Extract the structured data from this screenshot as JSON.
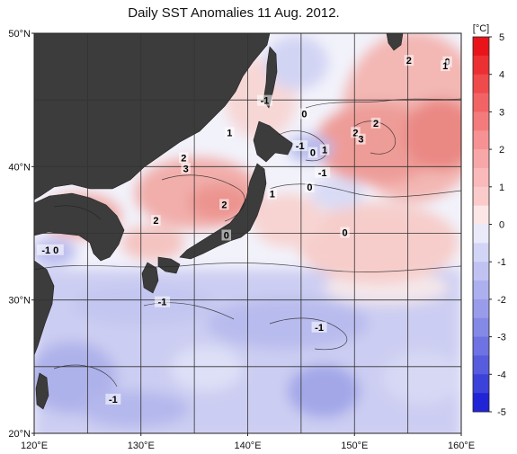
{
  "title": "Daily SST Anomalies 11 Aug. 2012.",
  "colorbar": {
    "unit": "[°C]",
    "ticks": [
      "5",
      "4",
      "3",
      "2",
      "1",
      "0",
      "-1",
      "-2",
      "-3",
      "-4",
      "-5"
    ]
  },
  "axes": {
    "lat_labels": [
      "50°N",
      "40°N",
      "30°N",
      "20°N"
    ],
    "lon_labels": [
      "120°E",
      "130°E",
      "140°E",
      "150°E",
      "160°E"
    ]
  },
  "contour_labels": [
    {
      "text": "0",
      "lon": 145.3,
      "lat": 43.9
    },
    {
      "text": "-1",
      "lon": 141.6,
      "lat": 44.9
    },
    {
      "text": "1",
      "lon": 138.3,
      "lat": 42.5
    },
    {
      "text": "0",
      "lon": 158.7,
      "lat": 47.8
    },
    {
      "text": "2",
      "lon": 155.1,
      "lat": 47.9
    },
    {
      "text": "1",
      "lon": 158.5,
      "lat": 47.5
    },
    {
      "text": "2",
      "lon": 152.0,
      "lat": 43.2
    },
    {
      "text": "2",
      "lon": 150.1,
      "lat": 42.5
    },
    {
      "text": "3",
      "lon": 150.6,
      "lat": 42.0
    },
    {
      "text": "-1",
      "lon": 144.9,
      "lat": 41.5
    },
    {
      "text": "0",
      "lon": 146.1,
      "lat": 41.0
    },
    {
      "text": "1",
      "lon": 147.2,
      "lat": 41.2
    },
    {
      "text": "2",
      "lon": 134.0,
      "lat": 40.6
    },
    {
      "text": "3",
      "lon": 134.2,
      "lat": 39.8
    },
    {
      "text": "-1",
      "lon": 147.0,
      "lat": 39.5
    },
    {
      "text": "0",
      "lon": 145.8,
      "lat": 38.4
    },
    {
      "text": "1",
      "lon": 142.3,
      "lat": 37.9
    },
    {
      "text": "2",
      "lon": 137.8,
      "lat": 37.1
    },
    {
      "text": "2",
      "lon": 131.4,
      "lat": 35.9
    },
    {
      "text": "0",
      "lon": 138.0,
      "lat": 34.8
    },
    {
      "text": "0",
      "lon": 149.1,
      "lat": 35.0
    },
    {
      "text": "-1 0",
      "lon": 121.5,
      "lat": 33.7
    },
    {
      "text": "-1",
      "lon": 132.0,
      "lat": 29.8
    },
    {
      "text": "-1",
      "lon": 146.7,
      "lat": 27.9
    },
    {
      "text": "-1",
      "lon": 127.4,
      "lat": 22.5
    }
  ]
}
